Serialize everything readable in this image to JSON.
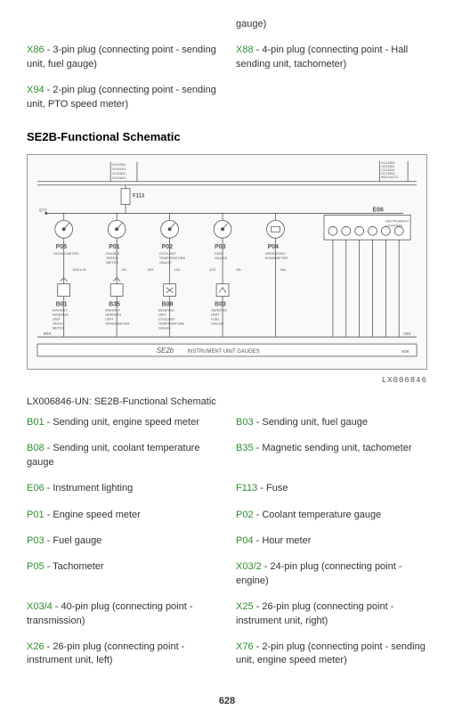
{
  "top_row1": {
    "left": {
      "code": "X86",
      "desc": " - 3-pin plug (connecting point - sending unit, fuel gauge)"
    },
    "right_pre": "gauge)",
    "right": {
      "code": "X88",
      "desc": " - 4-pin plug (connecting point - Hall sending unit, tachometer)"
    }
  },
  "top_row2": {
    "left": {
      "code": "X94",
      "desc": " - 2-pin plug (connecting point - sending unit, PTO speed meter)"
    }
  },
  "section_title": "SE2B-Functional Schematic",
  "schematic": {
    "top_labels": {
      "left": [
        "0121361",
        "0201161",
        "2121541",
        "0121841"
      ],
      "right": [
        "0121361",
        "0221161",
        "2121541",
        "0121841",
        "8021ACC1"
      ]
    },
    "fuse": "F113",
    "left_wire": "973",
    "gauges": [
      {
        "id": "P05",
        "label": "TACHO METER"
      },
      {
        "id": "P01",
        "label": "ENGINE SPEED-METER"
      },
      {
        "id": "P02",
        "label": "COOLANT TEMPERATURE GAUGE"
      },
      {
        "id": "P03",
        "label": "FUEL GAUGE"
      },
      {
        "id": "P04",
        "label": "OPERATING HOURMETER"
      }
    ],
    "e06": {
      "id": "E06",
      "label": "INSTRUMENT LIGHTING"
    },
    "senders": [
      {
        "id": "B01",
        "label": "MAGNET SENDING UNIT TACHO-METER"
      },
      {
        "id": "B35",
        "label": "MAGNET SENDING UNIT SPEEDMETER"
      },
      {
        "id": "B08",
        "label": "SENDING UNIT COOLANT TEMPERATURE GAUGE"
      },
      {
        "id": "B03",
        "label": "SENDING UNIT FUEL GAUGE"
      }
    ],
    "footer_left": "SE2b",
    "footer_right": "INSTRUMENT UNIT GAUGES",
    "footer_num": "608",
    "wire_labels": [
      "622/1/41",
      "14L",
      "093",
      "1NL",
      "103",
      "10L",
      "1NL"
    ],
    "bottom_left": "803",
    "bottom_right": "310"
  },
  "figure_id": "LX006846",
  "caption": "LX006846-UN: SE2B-Functional Schematic",
  "refs": [
    {
      "l": {
        "code": "B01",
        "desc": " - Sending unit, engine speed meter"
      },
      "r": {
        "code": "B03",
        "desc": " - Sending unit, fuel gauge"
      }
    },
    {
      "l": {
        "code": "B08",
        "desc": " - Sending unit, coolant temperature gauge"
      },
      "r": {
        "code": "B35",
        "desc": " - Magnetic sending unit, tachometer"
      }
    },
    {
      "l": {
        "code": "E06",
        "desc": " - Instrument lighting"
      },
      "r": {
        "code": "F113",
        "desc": " - Fuse"
      }
    },
    {
      "l": {
        "code": "P01",
        "desc": " - Engine speed meter"
      },
      "r": {
        "code": "P02",
        "desc": " - Coolant temperature gauge"
      }
    },
    {
      "l": {
        "code": "P03",
        "desc": " - Fuel gauge"
      },
      "r": {
        "code": "P04",
        "desc": " - Hour meter"
      }
    },
    {
      "l": {
        "code": "P05",
        "desc": " - Tachometer"
      },
      "r": {
        "code": "X03/2",
        "desc": " - 24-pin plug (connecting point - engine)"
      }
    },
    {
      "l": {
        "code": "X03/4",
        "desc": " - 40-pin plug (connecting point - transmission)"
      },
      "r": {
        "code": "X25",
        "desc": " - 26-pin plug (connecting point - instrument unit, right)"
      }
    },
    {
      "l": {
        "code": "X26",
        "desc": " - 26-pin plug (connecting point - instrument unit, left)"
      },
      "r": {
        "code": "X76",
        "desc": " - 2-pin plug (connecting point - sending unit, engine speed meter)"
      }
    }
  ],
  "page_number": "628"
}
